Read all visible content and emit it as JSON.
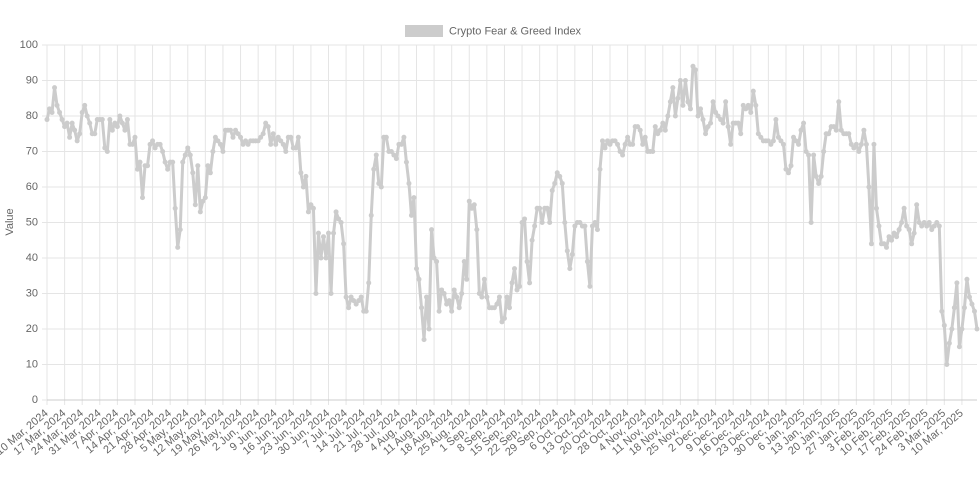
{
  "chart_data": {
    "type": "line",
    "legend_position": "top",
    "grid": true,
    "y_label": "Value",
    "ylim": [
      0,
      100
    ],
    "yticks": [
      0,
      10,
      20,
      30,
      40,
      50,
      60,
      70,
      80,
      90,
      100
    ],
    "categories": [
      "10 Mar, 2024",
      null,
      null,
      null,
      null,
      null,
      null,
      "17 Mar, 2024",
      null,
      null,
      null,
      null,
      null,
      null,
      "24 Mar, 2024",
      null,
      null,
      null,
      null,
      null,
      null,
      "31 Mar, 2024",
      null,
      null,
      null,
      null,
      null,
      null,
      "7 Apr, 2024",
      null,
      null,
      null,
      null,
      null,
      null,
      "14 Apr, 2024",
      null,
      null,
      null,
      null,
      null,
      null,
      "21 Apr, 2024",
      null,
      null,
      null,
      null,
      null,
      null,
      "28 Apr, 2024",
      null,
      null,
      null,
      null,
      null,
      null,
      "5 May, 2024",
      null,
      null,
      null,
      null,
      null,
      null,
      "12 May, 2024",
      null,
      null,
      null,
      null,
      null,
      null,
      "19 May, 2024",
      null,
      null,
      null,
      null,
      null,
      null,
      "26 May, 2024",
      null,
      null,
      null,
      null,
      null,
      null,
      "2 Jun, 2024",
      null,
      null,
      null,
      null,
      null,
      null,
      "9 Jun, 2024",
      null,
      null,
      null,
      null,
      null,
      null,
      "16 Jun, 2024",
      null,
      null,
      null,
      null,
      null,
      null,
      "23 Jun, 2024",
      null,
      null,
      null,
      null,
      null,
      null,
      "30 Jun, 2024",
      null,
      null,
      null,
      null,
      null,
      null,
      "7 Jul, 2024",
      null,
      null,
      null,
      null,
      null,
      null,
      "14 Jul, 2024",
      null,
      null,
      null,
      null,
      null,
      null,
      "21 Jul, 2024",
      null,
      null,
      null,
      null,
      null,
      null,
      "28 Jul, 2024",
      null,
      null,
      null,
      null,
      null,
      null,
      "4 Aug, 2024",
      null,
      null,
      null,
      null,
      null,
      null,
      "11 Aug, 2024",
      null,
      null,
      null,
      null,
      null,
      null,
      "18 Aug, 2024",
      null,
      null,
      null,
      null,
      null,
      null,
      "25 Aug, 2024",
      null,
      null,
      null,
      null,
      null,
      null,
      "1 Sep, 2024",
      null,
      null,
      null,
      null,
      null,
      null,
      "8 Sep, 2024",
      null,
      null,
      null,
      null,
      null,
      null,
      "15 Sep, 2024",
      null,
      null,
      null,
      null,
      null,
      null,
      "22 Sep, 2024",
      null,
      null,
      null,
      null,
      null,
      null,
      "29 Sep, 2024",
      null,
      null,
      null,
      null,
      null,
      null,
      "6 Oct, 2024",
      null,
      null,
      null,
      null,
      null,
      null,
      "13 Oct, 2024",
      null,
      null,
      null,
      null,
      null,
      null,
      "20 Oct, 2024",
      null,
      null,
      null,
      null,
      null,
      null,
      "28 Oct, 2024",
      null,
      null,
      null,
      null,
      null,
      null,
      "4 Nov, 2024",
      null,
      null,
      null,
      null,
      null,
      null,
      "11 Nov, 2024",
      null,
      null,
      null,
      null,
      null,
      null,
      "18 Nov, 2024",
      null,
      null,
      null,
      null,
      null,
      null,
      "25 Nov, 2024",
      null,
      null,
      null,
      null,
      null,
      null,
      "2 Dec, 2024",
      null,
      null,
      null,
      null,
      null,
      null,
      "9 Dec, 2024",
      null,
      null,
      null,
      null,
      null,
      null,
      "16 Dec, 2024",
      null,
      null,
      null,
      null,
      null,
      null,
      "23 Dec, 2024",
      null,
      null,
      null,
      null,
      null,
      null,
      "30 Dec, 2024",
      null,
      null,
      null,
      null,
      null,
      null,
      "6 Jan, 2025",
      null,
      null,
      null,
      null,
      null,
      null,
      "13 Jan, 2025",
      null,
      null,
      null,
      null,
      null,
      null,
      "20 Jan, 2025",
      null,
      null,
      null,
      null,
      null,
      null,
      "27 Jan, 2025",
      null,
      null,
      null,
      null,
      null,
      null,
      "3 Feb, 2025",
      null,
      null,
      null,
      null,
      null,
      null,
      "10 Feb, 2025",
      null,
      null,
      null,
      null,
      null,
      null,
      "17 Feb, 2025",
      null,
      null,
      null,
      null,
      null,
      null,
      "24 Feb, 2025",
      null,
      null,
      null,
      null,
      null,
      null,
      "3 Mar, 2025",
      null,
      null,
      null,
      null,
      null,
      null,
      "10 Mar, 2025",
      null,
      null,
      null,
      null,
      null,
      null
    ],
    "series": [
      {
        "name": "Crypto Fear & Greed Index",
        "color": "#cccccc",
        "values": [
          79,
          82,
          81,
          88,
          83,
          81,
          79,
          77,
          78,
          74,
          78,
          76,
          73,
          75,
          81,
          83,
          80,
          78,
          75,
          75,
          79,
          79,
          79,
          71,
          70,
          79,
          76,
          78,
          77,
          80,
          78,
          76,
          79,
          72,
          72,
          74,
          65,
          67,
          57,
          66,
          66,
          72,
          73,
          71,
          72,
          72,
          70,
          67,
          65,
          67,
          67,
          54,
          43,
          48,
          67,
          69,
          71,
          69,
          64,
          55,
          66,
          53,
          56,
          57,
          66,
          64,
          70,
          74,
          73,
          72,
          70,
          76,
          76,
          76,
          74,
          76,
          75,
          74,
          72,
          73,
          72,
          73,
          73,
          73,
          73,
          74,
          75,
          78,
          77,
          72,
          75,
          72,
          74,
          73,
          72,
          70,
          74,
          74,
          71,
          71,
          74,
          64,
          60,
          63,
          53,
          55,
          54,
          30,
          47,
          40,
          46,
          40,
          47,
          30,
          47,
          53,
          51,
          50,
          44,
          29,
          26,
          29,
          28,
          27,
          28,
          29,
          25,
          25,
          33,
          52,
          65,
          69,
          61,
          60,
          74,
          74,
          70,
          70,
          69,
          68,
          72,
          72,
          74,
          67,
          61,
          52,
          57,
          37,
          34,
          26,
          17,
          29,
          20,
          48,
          40,
          39,
          25,
          31,
          30,
          27,
          28,
          25,
          31,
          29,
          26,
          30,
          39,
          34,
          56,
          54,
          55,
          48,
          30,
          29,
          34,
          29,
          26,
          26,
          26,
          27,
          29,
          22,
          23,
          29,
          26,
          33,
          37,
          31,
          32,
          50,
          51,
          39,
          33,
          45,
          49,
          54,
          54,
          50,
          54,
          54,
          50,
          59,
          61,
          64,
          63,
          61,
          50,
          42,
          37,
          41,
          49,
          50,
          50,
          49,
          49,
          39,
          32,
          49,
          50,
          48,
          65,
          73,
          71,
          73,
          72,
          73,
          73,
          72,
          70,
          69,
          72,
          74,
          72,
          72,
          77,
          77,
          76,
          72,
          74,
          70,
          70,
          70,
          77,
          75,
          76,
          78,
          76,
          80,
          84,
          88,
          80,
          85,
          90,
          83,
          90,
          84,
          82,
          94,
          93,
          80,
          82,
          79,
          75,
          77,
          78,
          84,
          81,
          80,
          79,
          78,
          84,
          77,
          72,
          78,
          78,
          78,
          75,
          83,
          82,
          83,
          81,
          87,
          83,
          75,
          74,
          73,
          73,
          73,
          72,
          73,
          79,
          74,
          73,
          72,
          65,
          64,
          66,
          74,
          73,
          72,
          76,
          78,
          70,
          69,
          50,
          69,
          63,
          61,
          63,
          70,
          75,
          75,
          77,
          77,
          76,
          84,
          76,
          75,
          75,
          75,
          72,
          71,
          72,
          70,
          72,
          76,
          72,
          60,
          44,
          72,
          54,
          49,
          44,
          44,
          43,
          46,
          45,
          47,
          46,
          48,
          50,
          54,
          49,
          48,
          44,
          47,
          55,
          50,
          49,
          50,
          49,
          50,
          48,
          49,
          50,
          49,
          25,
          21,
          10,
          16,
          20,
          26,
          33,
          15,
          20,
          26,
          34,
          29,
          27,
          25,
          20
        ]
      }
    ]
  }
}
